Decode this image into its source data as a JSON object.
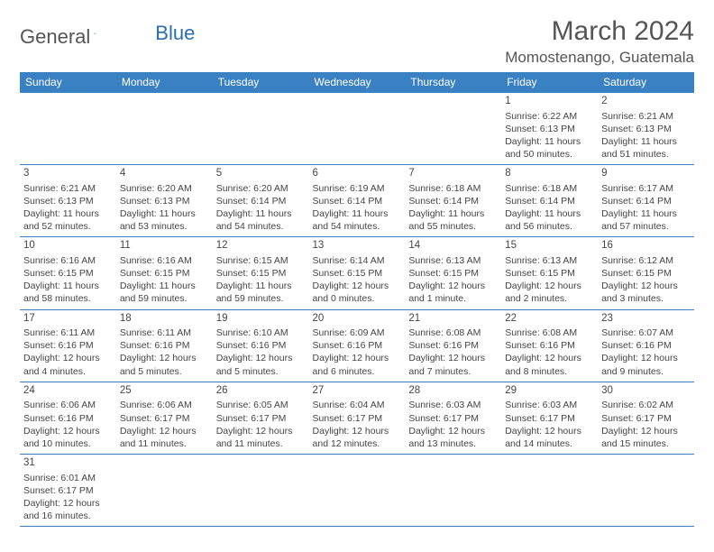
{
  "logo": {
    "main": "General",
    "accent": "Blue"
  },
  "title": "March 2024",
  "location": "Momostenango, Guatemala",
  "colors": {
    "header_bg": "#3a81c4",
    "header_fg": "#ffffff",
    "border": "#3a81c4",
    "text": "#444444",
    "logo_accent": "#2a6db0"
  },
  "dayNames": [
    "Sunday",
    "Monday",
    "Tuesday",
    "Wednesday",
    "Thursday",
    "Friday",
    "Saturday"
  ],
  "weeks": [
    [
      null,
      null,
      null,
      null,
      null,
      {
        "n": "1",
        "sr": "6:22 AM",
        "ss": "6:13 PM",
        "dl": "11 hours and 50 minutes."
      },
      {
        "n": "2",
        "sr": "6:21 AM",
        "ss": "6:13 PM",
        "dl": "11 hours and 51 minutes."
      }
    ],
    [
      {
        "n": "3",
        "sr": "6:21 AM",
        "ss": "6:13 PM",
        "dl": "11 hours and 52 minutes."
      },
      {
        "n": "4",
        "sr": "6:20 AM",
        "ss": "6:13 PM",
        "dl": "11 hours and 53 minutes."
      },
      {
        "n": "5",
        "sr": "6:20 AM",
        "ss": "6:14 PM",
        "dl": "11 hours and 54 minutes."
      },
      {
        "n": "6",
        "sr": "6:19 AM",
        "ss": "6:14 PM",
        "dl": "11 hours and 54 minutes."
      },
      {
        "n": "7",
        "sr": "6:18 AM",
        "ss": "6:14 PM",
        "dl": "11 hours and 55 minutes."
      },
      {
        "n": "8",
        "sr": "6:18 AM",
        "ss": "6:14 PM",
        "dl": "11 hours and 56 minutes."
      },
      {
        "n": "9",
        "sr": "6:17 AM",
        "ss": "6:14 PM",
        "dl": "11 hours and 57 minutes."
      }
    ],
    [
      {
        "n": "10",
        "sr": "6:16 AM",
        "ss": "6:15 PM",
        "dl": "11 hours and 58 minutes."
      },
      {
        "n": "11",
        "sr": "6:16 AM",
        "ss": "6:15 PM",
        "dl": "11 hours and 59 minutes."
      },
      {
        "n": "12",
        "sr": "6:15 AM",
        "ss": "6:15 PM",
        "dl": "11 hours and 59 minutes."
      },
      {
        "n": "13",
        "sr": "6:14 AM",
        "ss": "6:15 PM",
        "dl": "12 hours and 0 minutes."
      },
      {
        "n": "14",
        "sr": "6:13 AM",
        "ss": "6:15 PM",
        "dl": "12 hours and 1 minute."
      },
      {
        "n": "15",
        "sr": "6:13 AM",
        "ss": "6:15 PM",
        "dl": "12 hours and 2 minutes."
      },
      {
        "n": "16",
        "sr": "6:12 AM",
        "ss": "6:15 PM",
        "dl": "12 hours and 3 minutes."
      }
    ],
    [
      {
        "n": "17",
        "sr": "6:11 AM",
        "ss": "6:16 PM",
        "dl": "12 hours and 4 minutes."
      },
      {
        "n": "18",
        "sr": "6:11 AM",
        "ss": "6:16 PM",
        "dl": "12 hours and 5 minutes."
      },
      {
        "n": "19",
        "sr": "6:10 AM",
        "ss": "6:16 PM",
        "dl": "12 hours and 5 minutes."
      },
      {
        "n": "20",
        "sr": "6:09 AM",
        "ss": "6:16 PM",
        "dl": "12 hours and 6 minutes."
      },
      {
        "n": "21",
        "sr": "6:08 AM",
        "ss": "6:16 PM",
        "dl": "12 hours and 7 minutes."
      },
      {
        "n": "22",
        "sr": "6:08 AM",
        "ss": "6:16 PM",
        "dl": "12 hours and 8 minutes."
      },
      {
        "n": "23",
        "sr": "6:07 AM",
        "ss": "6:16 PM",
        "dl": "12 hours and 9 minutes."
      }
    ],
    [
      {
        "n": "24",
        "sr": "6:06 AM",
        "ss": "6:16 PM",
        "dl": "12 hours and 10 minutes."
      },
      {
        "n": "25",
        "sr": "6:06 AM",
        "ss": "6:17 PM",
        "dl": "12 hours and 11 minutes."
      },
      {
        "n": "26",
        "sr": "6:05 AM",
        "ss": "6:17 PM",
        "dl": "12 hours and 11 minutes."
      },
      {
        "n": "27",
        "sr": "6:04 AM",
        "ss": "6:17 PM",
        "dl": "12 hours and 12 minutes."
      },
      {
        "n": "28",
        "sr": "6:03 AM",
        "ss": "6:17 PM",
        "dl": "12 hours and 13 minutes."
      },
      {
        "n": "29",
        "sr": "6:03 AM",
        "ss": "6:17 PM",
        "dl": "12 hours and 14 minutes."
      },
      {
        "n": "30",
        "sr": "6:02 AM",
        "ss": "6:17 PM",
        "dl": "12 hours and 15 minutes."
      }
    ],
    [
      {
        "n": "31",
        "sr": "6:01 AM",
        "ss": "6:17 PM",
        "dl": "12 hours and 16 minutes."
      },
      null,
      null,
      null,
      null,
      null,
      null
    ]
  ],
  "labels": {
    "sunrise": "Sunrise:",
    "sunset": "Sunset:",
    "daylight": "Daylight:"
  }
}
